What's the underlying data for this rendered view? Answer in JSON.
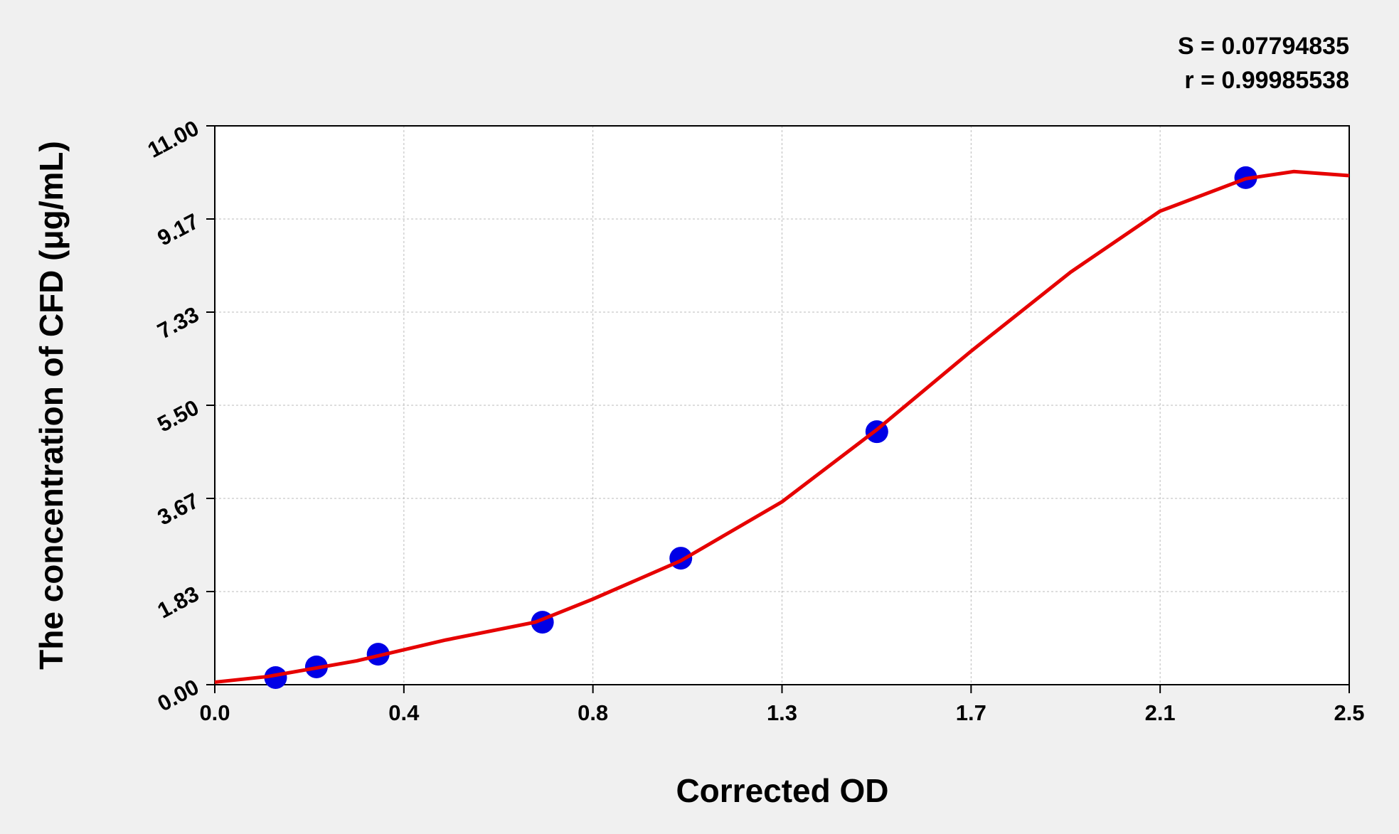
{
  "chart_data": {
    "type": "scatter",
    "xlabel": "Corrected OD",
    "ylabel": "The concentration of CFD (μg/mL)",
    "annotations": [
      "S = 0.07794835",
      "r = 0.99985538"
    ],
    "xlim": [
      0,
      2.5
    ],
    "xticks": [
      {
        "value": 0,
        "label": "0.0"
      },
      {
        "value": 0.4167,
        "label": "0.4"
      },
      {
        "value": 0.8333,
        "label": "0.8"
      },
      {
        "value": 1.25,
        "label": "1.3"
      },
      {
        "value": 1.6667,
        "label": "1.7"
      },
      {
        "value": 2.0833,
        "label": "2.1"
      },
      {
        "value": 2.5,
        "label": "2.5"
      }
    ],
    "ylim": [
      0,
      11
    ],
    "yticks": [
      {
        "value": 0,
        "label": "0.00"
      },
      {
        "value": 1.8333,
        "label": "1.83"
      },
      {
        "value": 3.6667,
        "label": "3.67"
      },
      {
        "value": 5.5,
        "label": "5.50"
      },
      {
        "value": 7.3333,
        "label": "7.33"
      },
      {
        "value": 9.1667,
        "label": "9.17"
      },
      {
        "value": 11,
        "label": "11.00"
      }
    ],
    "grid": true,
    "series": [
      {
        "type": "scatter",
        "color": "#0000e6",
        "x": [
          0.134,
          0.224,
          0.36,
          0.722,
          1.027,
          1.459,
          2.272
        ],
        "values": [
          0.14,
          0.35,
          0.6,
          1.23,
          2.49,
          4.98,
          9.98
        ]
      },
      {
        "type": "line",
        "color": "#e60000",
        "x": [
          0,
          0.116,
          0.313,
          0.509,
          0.706,
          0.832,
          1.027,
          1.25,
          1.459,
          1.666,
          1.886,
          2.083,
          2.272,
          2.378,
          2.5
        ],
        "values": [
          0.05,
          0.16,
          0.47,
          0.88,
          1.23,
          1.68,
          2.44,
          3.6,
          5.02,
          6.56,
          8.12,
          9.32,
          9.96,
          10.1,
          10.02
        ]
      }
    ]
  }
}
